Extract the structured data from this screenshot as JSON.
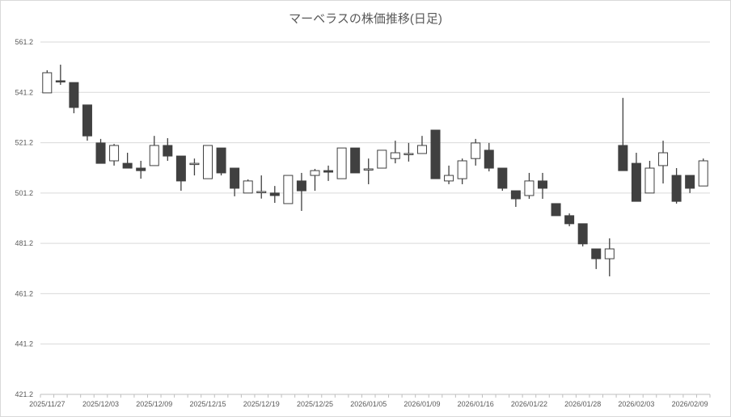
{
  "chart_data": {
    "type": "candlestick",
    "title": "マーベラスの株価推移(日足)",
    "xlabel": "",
    "ylabel": "",
    "ylim": [
      421.2,
      561.2
    ],
    "yticks": [
      "421.2",
      "441.2",
      "461.2",
      "481.2",
      "501.2",
      "521.2",
      "541.2",
      "561.2"
    ],
    "grid": true,
    "legend": "none",
    "colors": {
      "up_fill": "#ffffff",
      "down_fill": "#404040",
      "line": "#404040",
      "grid": "#d9d9d9",
      "text": "#595959"
    },
    "xtick_labels": [
      "2025/11/27",
      "2025/12/03",
      "2025/12/09",
      "2025/12/15",
      "2025/12/19",
      "2025/12/25",
      "2026/01/05",
      "2026/01/09",
      "2026/01/16",
      "2026/01/22",
      "2026/01/28",
      "2026/02/03",
      "2026/02/09"
    ],
    "dates": [
      "2025/11/27",
      "2025/11/28",
      "2025/12/01",
      "2025/12/02",
      "2025/12/03",
      "2025/12/04",
      "2025/12/05",
      "2025/12/08",
      "2025/12/09",
      "2025/12/10",
      "2025/12/11",
      "2025/12/12",
      "2025/12/15",
      "2025/12/16",
      "2025/12/17",
      "2025/12/18",
      "2025/12/19",
      "2025/12/22",
      "2025/12/23",
      "2025/12/24",
      "2025/12/25",
      "2025/12/26",
      "2025/12/29",
      "2025/12/30",
      "2026/01/05",
      "2026/01/06",
      "2026/01/07",
      "2026/01/08",
      "2026/01/09",
      "2026/01/13",
      "2026/01/14",
      "2026/01/15",
      "2026/01/16",
      "2026/01/19",
      "2026/01/20",
      "2026/01/21",
      "2026/01/22",
      "2026/01/23",
      "2026/01/26",
      "2026/01/27",
      "2026/01/28",
      "2026/01/29",
      "2026/01/30",
      "2026/02/02",
      "2026/02/03",
      "2026/02/04",
      "2026/02/05",
      "2026/02/06",
      "2026/02/09",
      "2026/02/10"
    ],
    "ohlc_fields": [
      "open",
      "high",
      "low",
      "close"
    ],
    "ohlc": [
      [
        541.0,
        550.0,
        541.0,
        549.0
      ],
      [
        545.8,
        552.2,
        544.2,
        545.5
      ],
      [
        545.1,
        545.1,
        532.9,
        535.2
      ],
      [
        536.2,
        536.2,
        522.0,
        523.9
      ],
      [
        521.1,
        522.7,
        513.0,
        513.0
      ],
      [
        514.0,
        520.7,
        512.1,
        520.1
      ],
      [
        513.0,
        517.2,
        511.1,
        511.1
      ],
      [
        511.1,
        514.0,
        506.9,
        510.1
      ],
      [
        512.1,
        523.9,
        512.1,
        520.1
      ],
      [
        520.1,
        523.0,
        514.0,
        515.9
      ],
      [
        515.9,
        515.9,
        502.1,
        506.0
      ],
      [
        513.0,
        514.9,
        508.2,
        513.0
      ],
      [
        506.9,
        520.1,
        506.9,
        520.1
      ],
      [
        519.1,
        519.1,
        508.2,
        509.2
      ],
      [
        511.1,
        511.1,
        499.9,
        503.1
      ],
      [
        501.2,
        506.6,
        501.2,
        506.0
      ],
      [
        501.8,
        508.2,
        499.0,
        501.8
      ],
      [
        501.2,
        504.0,
        497.3,
        500.2
      ],
      [
        497.0,
        508.2,
        497.0,
        508.2
      ],
      [
        506.0,
        509.2,
        494.1,
        502.1
      ],
      [
        508.2,
        510.8,
        502.1,
        510.1
      ],
      [
        510.1,
        512.1,
        506.0,
        509.5
      ],
      [
        506.9,
        519.1,
        506.9,
        519.1
      ],
      [
        519.1,
        519.1,
        509.2,
        509.2
      ],
      [
        510.8,
        514.9,
        504.7,
        510.8
      ],
      [
        511.1,
        518.2,
        511.1,
        518.2
      ],
      [
        514.9,
        522.0,
        513.0,
        517.2
      ],
      [
        516.9,
        521.1,
        513.7,
        516.9
      ],
      [
        516.9,
        523.9,
        516.9,
        520.1
      ],
      [
        526.2,
        526.2,
        506.9,
        506.9
      ],
      [
        506.0,
        512.1,
        504.7,
        508.2
      ],
      [
        506.9,
        514.9,
        504.7,
        514.0
      ],
      [
        514.9,
        522.7,
        512.1,
        521.1
      ],
      [
        518.2,
        521.1,
        509.8,
        511.1
      ],
      [
        511.1,
        511.1,
        502.1,
        503.1
      ],
      [
        502.1,
        502.1,
        495.7,
        498.9
      ],
      [
        500.2,
        509.2,
        498.9,
        506.0
      ],
      [
        506.0,
        509.2,
        498.9,
        503.1
      ],
      [
        497.0,
        497.0,
        492.2,
        492.2
      ],
      [
        492.2,
        493.1,
        488.0,
        489.0
      ],
      [
        489.0,
        489.0,
        480.0,
        481.0
      ],
      [
        479.0,
        479.0,
        471.0,
        475.1
      ],
      [
        475.1,
        483.2,
        468.1,
        479.0
      ],
      [
        520.1,
        539.0,
        510.1,
        510.1
      ],
      [
        513.0,
        517.2,
        497.9,
        497.9
      ],
      [
        501.2,
        514.0,
        501.2,
        511.1
      ],
      [
        512.1,
        522.0,
        505.0,
        517.2
      ],
      [
        508.2,
        511.1,
        497.0,
        497.9
      ],
      [
        508.2,
        508.2,
        501.2,
        503.1
      ],
      [
        504.0,
        514.9,
        504.0,
        514.0
      ]
    ]
  }
}
